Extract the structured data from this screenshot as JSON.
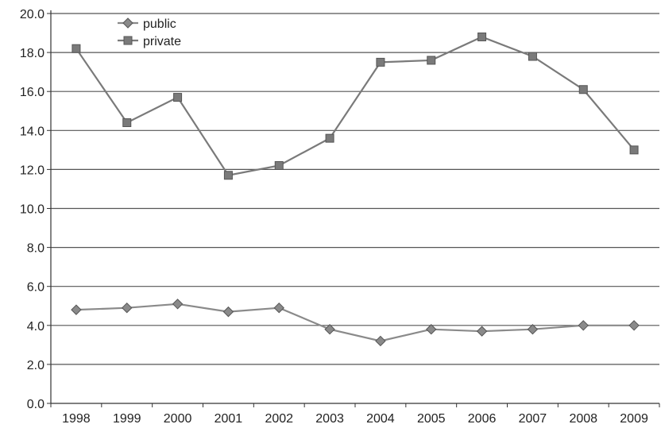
{
  "chart_data": {
    "type": "line",
    "title": "",
    "xlabel": "",
    "ylabel": "",
    "categories": [
      "1998",
      "1999",
      "2000",
      "2001",
      "2002",
      "2003",
      "2004",
      "2005",
      "2006",
      "2007",
      "2008",
      "2009"
    ],
    "ylim": [
      0,
      20
    ],
    "yticks": [
      "0.0",
      "2.0",
      "4.0",
      "6.0",
      "8.0",
      "10.0",
      "12.0",
      "14.0",
      "16.0",
      "18.0",
      "20.0"
    ],
    "grid": true,
    "legend_position": "top-left",
    "series": [
      {
        "name": "public",
        "marker": "diamond",
        "color": "#8a8a8a",
        "values": [
          4.8,
          4.9,
          5.1,
          4.7,
          4.9,
          3.8,
          3.2,
          3.8,
          3.7,
          3.8,
          4.0,
          4.0
        ]
      },
      {
        "name": "private",
        "marker": "square",
        "color": "#7a7a7a",
        "values": [
          18.2,
          14.4,
          15.7,
          11.7,
          12.2,
          13.6,
          17.5,
          17.6,
          18.8,
          17.8,
          16.1,
          13.0
        ]
      }
    ]
  }
}
